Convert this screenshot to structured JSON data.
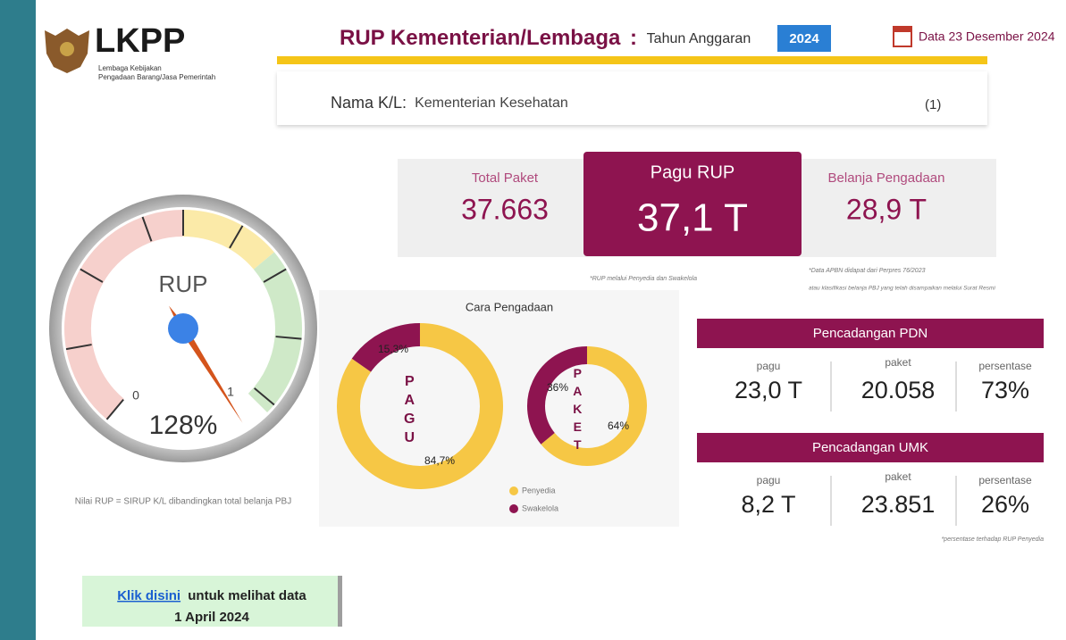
{
  "header": {
    "logo": {
      "name": "LKPP",
      "line1": "Lembaga Kebijakan",
      "line2": "Pengadaan Barang/Jasa Pemerintah"
    },
    "title": "RUP Kementerian/Lembaga",
    "separator": ":",
    "year_label": "Tahun Anggaran",
    "year": "2024",
    "date": "Data 23 Desember 2024"
  },
  "filter": {
    "label": "Nama K/L:",
    "value": "Kementerian Kesehatan",
    "count": "(1)"
  },
  "kpis": [
    {
      "label": "Total Paket",
      "value": "37.663"
    },
    {
      "label": "Pagu RUP",
      "value": "37,1 T"
    },
    {
      "label": "Belanja Pengadaan",
      "value": "28,9 T"
    }
  ],
  "notes": {
    "pagu": "*RUP melalui Penyedia dan Swakelola",
    "belanja1": "*Data APBN didapat dari Perpres 76/2023",
    "belanja2": "atau klasifikasi belanja PBJ yang telah disampaikan melalui Surat Resmi",
    "percent": "*persentase terhadap RUP Penyedia"
  },
  "gauge": {
    "label": "RUP",
    "value": 1.28,
    "value_label": "128%",
    "min": 0,
    "max": 1,
    "note": "Nilai RUP = SIRUP K/L dibandingkan total belanja PBJ"
  },
  "procurement": {
    "title": "Cara Pengadaan",
    "legend": [
      {
        "name": "Penyedia",
        "color": "#f6c745"
      },
      {
        "name": "Swakelola",
        "color": "#8e1450"
      }
    ],
    "donuts": [
      {
        "label": "PAGU",
        "values": [
          84.7,
          15.3
        ],
        "value_labels": [
          "84,7%",
          "15,3%"
        ]
      },
      {
        "label": "PAKET",
        "values": [
          64,
          36
        ],
        "value_labels": [
          "64%",
          "36%"
        ]
      }
    ]
  },
  "reservations": [
    {
      "title": "Pencadangan PDN",
      "columns": [
        "pagu",
        "paket",
        "persentase"
      ],
      "values": [
        "23,0 T",
        "20.058",
        "73%"
      ]
    },
    {
      "title": "Pencadangan UMK",
      "columns": [
        "pagu",
        "paket",
        "persentase"
      ],
      "values": [
        "8,2 T",
        "23.851",
        "26%"
      ]
    }
  ],
  "link": {
    "anchor": "Klik disini",
    "text": "untuk melihat data",
    "date": "1 April 2024"
  }
}
